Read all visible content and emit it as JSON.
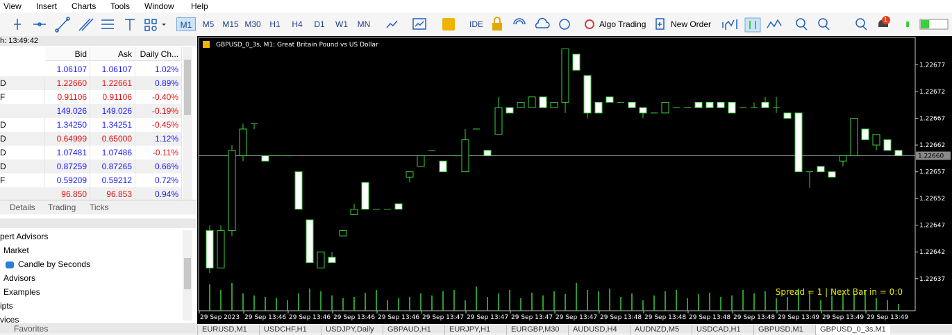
{
  "menu": [
    "View",
    "Insert",
    "Charts",
    "Tools",
    "Window",
    "Help"
  ],
  "toolbar": {
    "timeframes": [
      "M1",
      "M5",
      "M15",
      "M30",
      "H1",
      "H4",
      "D1",
      "W1",
      "MN"
    ],
    "active_timeframe_index": 0,
    "ide": "IDE",
    "algo_trading": "Algo Trading",
    "new_order": "New Order",
    "notification_count": "1"
  },
  "market_watch": {
    "title": "h: 13:49:42",
    "columns": [
      "Bid",
      "Ask",
      "Daily Ch..."
    ],
    "rows": [
      {
        "bid": "1.06107",
        "ask": "1.06107",
        "change": "1.02%",
        "color": "#1a1aff",
        "change_color": "#1a1aff"
      },
      {
        "symbol": "D",
        "bid": "1.22660",
        "ask": "1.22661",
        "change": "0.89%",
        "color": "#e01010",
        "change_color": "#1a1aff"
      },
      {
        "symbol": "F",
        "bid": "0.91106",
        "ask": "0.91106",
        "change": "-0.40%",
        "color": "#e01010",
        "change_color": "#e01010"
      },
      {
        "bid": "149.026",
        "ask": "149.026",
        "change": "-0.19%",
        "color": "#1a1aff",
        "change_color": "#e01010"
      },
      {
        "symbol": "D",
        "bid": "1.34250",
        "ask": "1.34251",
        "change": "-0.45%",
        "color": "#1a1aff",
        "change_color": "#e01010"
      },
      {
        "symbol": "D",
        "bid": "0.64999",
        "ask": "0.65000",
        "change": "1.12%",
        "color": "#e01010",
        "change_color": "#1a1aff"
      },
      {
        "symbol": "D",
        "bid": "1.07481",
        "ask": "1.07486",
        "change": "-0.11%",
        "color": "#1a1aff",
        "change_color": "#e01010"
      },
      {
        "symbol": "D",
        "bid": "0.87259",
        "ask": "0.87265",
        "change": "0.66%",
        "color": "#1a1aff",
        "change_color": "#1a1aff"
      },
      {
        "symbol": "F",
        "bid": "0.59209",
        "ask": "0.59212",
        "change": "0.72%",
        "color": "#1a1aff",
        "change_color": "#1a1aff"
      },
      {
        "bid": "96.850",
        "ask": "96.853",
        "change": "0.94%",
        "color": "#e01010",
        "change_color": "#1a1aff"
      }
    ],
    "tabs": [
      "Details",
      "Trading",
      "Ticks"
    ]
  },
  "navigator": {
    "items": [
      "pert Advisors",
      "Market",
      "Candle by Seconds",
      "Advisors",
      "Examples",
      "ipts",
      "vices"
    ],
    "tab": "Favorites"
  },
  "chart": {
    "type": "candlestick",
    "title": "GBPUSD_0_3s, M1:  Great Britain Pound vs US Dollar",
    "status": "Spread = 1 |  Next Bar in = 0:0",
    "background": "#000000",
    "candle_color": "#3ccf3c",
    "bull_fill": "#000000",
    "bear_fill": "#ffffff",
    "grid": false,
    "ylim": [
      1.22631,
      1.22682
    ],
    "yticks": [
      1.22637,
      1.22642,
      1.22647,
      1.22652,
      1.22657,
      1.22662,
      1.22667,
      1.22672,
      1.22677
    ],
    "last_price": {
      "value": 1.2266,
      "label": "1.22660"
    },
    "x_labels": [
      "29 Sep 2023",
      "29 Sep 13:46",
      "29 Sep 13:46",
      "29 Sep 13:46",
      "29 Sep 13:46",
      "29 Sep 13:47",
      "29 Sep 13:47",
      "29 Sep 13:47",
      "29 Sep 13:47",
      "29 Sep 13:48",
      "29 Sep 13:48",
      "29 Sep 13:48",
      "29 Sep 13:48",
      "29 Sep 13:49",
      "29 Sep 13:49",
      "29 Sep 13:49"
    ],
    "candles": [
      [
        1.22646,
        1.22647,
        1.22638,
        1.22639
      ],
      [
        1.22639,
        1.22647,
        1.22639,
        1.22646
      ],
      [
        1.22646,
        1.22662,
        1.22645,
        1.22661
      ],
      [
        1.2266,
        1.22666,
        1.22659,
        1.22665
      ],
      [
        1.22666,
        1.22666,
        1.22665,
        1.22666
      ],
      [
        1.2266,
        1.2266,
        1.22659,
        1.22659
      ],
      [
        1.2266,
        1.2266,
        1.2266,
        1.2266
      ],
      [
        1.2266,
        1.2266,
        1.2266,
        1.2266
      ],
      [
        1.22657,
        1.22657,
        1.2265,
        1.2265
      ],
      [
        1.22648,
        1.22648,
        1.2264,
        1.2264
      ],
      [
        1.22639,
        1.22642,
        1.22639,
        1.22642
      ],
      [
        1.22641,
        1.22642,
        1.2264,
        1.2264
      ],
      [
        1.22645,
        1.22646,
        1.22645,
        1.22646
      ],
      [
        1.22649,
        1.22651,
        1.22649,
        1.2265
      ],
      [
        1.22655,
        1.22655,
        1.2265,
        1.2265
      ],
      [
        1.2265,
        1.2265,
        1.2265,
        1.2265
      ],
      [
        1.2265,
        1.2265,
        1.2265,
        1.2265
      ],
      [
        1.22651,
        1.22651,
        1.2265,
        1.2265
      ],
      [
        1.22656,
        1.22657,
        1.22655,
        1.22657
      ],
      [
        1.22658,
        1.2266,
        1.22658,
        1.2266
      ],
      [
        1.22661,
        1.22661,
        1.22661,
        1.22661
      ],
      [
        1.22659,
        1.22659,
        1.22657,
        1.22657
      ],
      [
        1.2266,
        1.2266,
        1.2266,
        1.2266
      ],
      [
        1.22657,
        1.22665,
        1.22657,
        1.22663
      ],
      [
        1.22665,
        1.22665,
        1.22665,
        1.22665
      ],
      [
        1.22661,
        1.22661,
        1.2266,
        1.2266
      ],
      [
        1.22664,
        1.22671,
        1.22664,
        1.22669
      ],
      [
        1.22669,
        1.22669,
        1.22668,
        1.22668
      ],
      [
        1.22669,
        1.2267,
        1.22669,
        1.2267
      ],
      [
        1.22669,
        1.22671,
        1.22669,
        1.22671
      ],
      [
        1.22671,
        1.22671,
        1.22669,
        1.22669
      ],
      [
        1.22669,
        1.2267,
        1.22669,
        1.2267
      ],
      [
        1.2267,
        1.2268,
        1.22668,
        1.2268
      ],
      [
        1.22679,
        1.22679,
        1.22676,
        1.22676
      ],
      [
        1.22675,
        1.22675,
        1.22667,
        1.22668
      ],
      [
        1.2267,
        1.2267,
        1.22668,
        1.22668
      ],
      [
        1.22671,
        1.22671,
        1.2267,
        1.2267
      ],
      [
        1.2267,
        1.2267,
        1.2267,
        1.2267
      ],
      [
        1.2267,
        1.2267,
        1.22669,
        1.22669
      ],
      [
        1.22669,
        1.22669,
        1.22667,
        1.22668
      ],
      [
        1.22668,
        1.22668,
        1.22668,
        1.22668
      ],
      [
        1.22668,
        1.2267,
        1.22668,
        1.2267
      ],
      [
        1.22669,
        1.22669,
        1.22669,
        1.22669
      ],
      [
        1.22669,
        1.22669,
        1.22669,
        1.22669
      ],
      [
        1.2267,
        1.2267,
        1.22669,
        1.22669
      ],
      [
        1.2267,
        1.2267,
        1.22669,
        1.22669
      ],
      [
        1.2267,
        1.2267,
        1.22669,
        1.22669
      ],
      [
        1.2267,
        1.2267,
        1.22668,
        1.22668
      ],
      [
        1.22669,
        1.22669,
        1.22669,
        1.22669
      ],
      [
        1.22669,
        1.2267,
        1.22669,
        1.22669
      ],
      [
        1.2267,
        1.22671,
        1.22669,
        1.22669
      ],
      [
        1.22669,
        1.22671,
        1.22668,
        1.22669
      ],
      [
        1.22668,
        1.22668,
        1.22667,
        1.22667
      ],
      [
        1.22668,
        1.22668,
        1.22657,
        1.22657
      ],
      [
        1.22657,
        1.22657,
        1.22654,
        1.22657
      ],
      [
        1.22658,
        1.22658,
        1.22657,
        1.22657
      ],
      [
        1.22657,
        1.22657,
        1.22656,
        1.22656
      ],
      [
        1.22659,
        1.2266,
        1.22658,
        1.2266
      ],
      [
        1.2266,
        1.22667,
        1.2266,
        1.22667
      ],
      [
        1.22665,
        1.22665,
        1.22663,
        1.22663
      ],
      [
        1.22662,
        1.22664,
        1.22661,
        1.22664
      ],
      [
        1.22663,
        1.22663,
        1.22661,
        1.22661
      ],
      [
        1.22661,
        1.22661,
        1.2266,
        1.2266
      ]
    ],
    "volumes": [
      38,
      30,
      40,
      25,
      22,
      20,
      18,
      15,
      25,
      32,
      28,
      22,
      18,
      20,
      26,
      30,
      15,
      18,
      20,
      25,
      22,
      28,
      30,
      15,
      35,
      20,
      25,
      30,
      18,
      26,
      22,
      28,
      24,
      40,
      30,
      28,
      32,
      20,
      25,
      15,
      22,
      28,
      30,
      18,
      24,
      26,
      20,
      22,
      30,
      25,
      28,
      18,
      20,
      32,
      28,
      15,
      22,
      26,
      25,
      30,
      18,
      15,
      10
    ]
  },
  "chart_tabs": [
    "EURUSD,M1",
    "USDCHF,H1",
    "USDJPY,Daily",
    "GBPAUD,H1",
    "EURJPY,H1",
    "EURGBP,M30",
    "AUDUSD,H4",
    "AUDNZD,M5",
    "USDCAD,H1",
    "GBPUSD,M1",
    "GBPUSD_0_3s,M1"
  ]
}
